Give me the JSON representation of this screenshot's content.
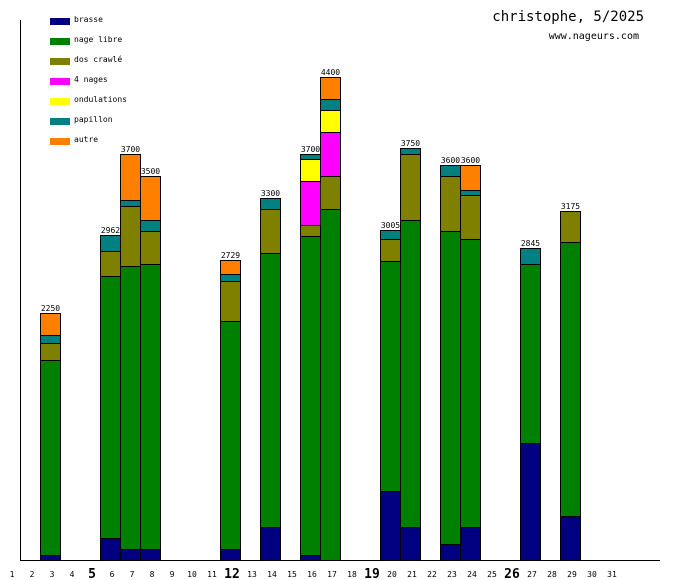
{
  "header": {
    "title": "christophe, 5/2025",
    "site": "www.nageurs.com"
  },
  "chart_data": {
    "type": "bar",
    "stacked": true,
    "title": "christophe, 5/2025",
    "subtitle": "www.nageurs.com",
    "xlabel": "",
    "ylabel": "",
    "ylim": [
      0,
      4400
    ],
    "grid": false,
    "legend_position": "top-left",
    "unit": "m",
    "categories": [
      "1",
      "2",
      "3",
      "4",
      "5",
      "6",
      "7",
      "8",
      "9",
      "10",
      "11",
      "12",
      "13",
      "14",
      "15",
      "16",
      "17",
      "18",
      "19",
      "20",
      "21",
      "22",
      "23",
      "24",
      "25",
      "26",
      "27",
      "28",
      "29",
      "30",
      "31"
    ],
    "bold_categories": [
      "5",
      "12",
      "19",
      "26"
    ],
    "series": [
      {
        "name": "brasse",
        "color": "#000080",
        "values": [
          0,
          50,
          0,
          0,
          200,
          100,
          100,
          0,
          0,
          0,
          100,
          0,
          300,
          0,
          50,
          0,
          0,
          0,
          625,
          300,
          0,
          150,
          300,
          0,
          0,
          1070,
          0,
          400,
          0,
          0,
          0
        ]
      },
      {
        "name": "nage libre",
        "color": "#008000",
        "values": [
          0,
          1775,
          0,
          0,
          2387,
          2575,
          2600,
          0,
          0,
          0,
          2075,
          0,
          2500,
          0,
          2900,
          3200,
          0,
          0,
          2100,
          2800,
          0,
          2850,
          2625,
          0,
          0,
          1625,
          0,
          2500,
          0,
          0,
          0
        ]
      },
      {
        "name": "dos crawlé",
        "color": "#808000",
        "values": [
          0,
          150,
          0,
          0,
          225,
          550,
          300,
          0,
          0,
          0,
          364,
          0,
          400,
          0,
          100,
          300,
          0,
          0,
          200,
          600,
          0,
          500,
          400,
          0,
          0,
          0,
          0,
          275,
          0,
          0,
          0
        ]
      },
      {
        "name": "4 nages",
        "color": "#ff00ff",
        "values": [
          0,
          0,
          0,
          0,
          0,
          0,
          0,
          0,
          0,
          0,
          0,
          0,
          0,
          0,
          400,
          400,
          0,
          0,
          0,
          0,
          0,
          0,
          0,
          0,
          0,
          0,
          0,
          0,
          0,
          0,
          0
        ]
      },
      {
        "name": "ondulations",
        "color": "#ffff00",
        "values": [
          0,
          0,
          0,
          0,
          0,
          0,
          0,
          0,
          0,
          0,
          0,
          0,
          0,
          0,
          200,
          200,
          0,
          0,
          0,
          0,
          0,
          0,
          0,
          0,
          0,
          0,
          0,
          0,
          0,
          0,
          0
        ]
      },
      {
        "name": "papillon",
        "color": "#008080",
        "values": [
          0,
          75,
          0,
          0,
          150,
          50,
          100,
          0,
          0,
          0,
          65,
          0,
          100,
          0,
          50,
          100,
          0,
          0,
          80,
          50,
          0,
          100,
          50,
          0,
          0,
          150,
          0,
          0,
          0,
          0,
          0
        ]
      },
      {
        "name": "autre",
        "color": "#ff8000",
        "values": [
          0,
          200,
          0,
          0,
          0,
          425,
          400,
          0,
          0,
          0,
          125,
          0,
          0,
          0,
          0,
          200,
          0,
          0,
          0,
          0,
          0,
          0,
          225,
          0,
          0,
          0,
          0,
          0,
          0,
          0,
          0
        ]
      }
    ],
    "totals": [
      null,
      "2250",
      null,
      null,
      "2962",
      "3700",
      "3500",
      null,
      null,
      null,
      "2729",
      null,
      "3300",
      null,
      "3700",
      "4400",
      null,
      null,
      "3005",
      "3750",
      null,
      "3600",
      "3600",
      null,
      null,
      "2845",
      null,
      "3175",
      null,
      null,
      null
    ]
  }
}
